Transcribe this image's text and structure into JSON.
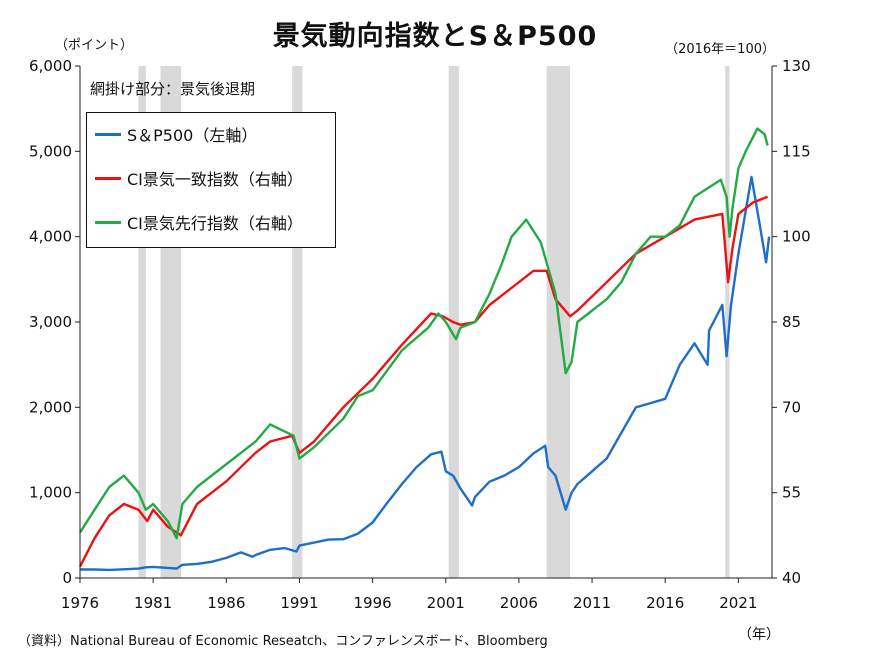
{
  "title": "景気動向指数とS＆P500",
  "unit_left": "（ポイント）",
  "unit_right": "（2016年＝100）",
  "shade_note": "網掛け部分：景気後退期",
  "source": "（資料）National Bureau of Economic Reseatch、コンファレンスボード、Bloomberg",
  "x_unit": "（年）",
  "chart_data": {
    "type": "line",
    "title": "景気動向指数とS＆P500",
    "xlim": [
      1976,
      2023.3
    ],
    "x_ticks": [
      1976,
      1981,
      1986,
      1991,
      1996,
      2001,
      2006,
      2011,
      2016,
      2021
    ],
    "x_tick_labels": [
      "1976",
      "1981",
      "1986",
      "1991",
      "1996",
      "2001",
      "2006",
      "2011",
      "2016",
      "2021"
    ],
    "y_left": {
      "label": "（ポイント）",
      "lim": [
        0,
        6000
      ],
      "ticks": [
        0,
        1000,
        2000,
        3000,
        4000,
        5000,
        6000
      ],
      "tick_labels": [
        "0",
        "1,000",
        "2,000",
        "3,000",
        "4,000",
        "5,000",
        "6,000"
      ]
    },
    "y_right": {
      "label": "（2016年＝100）",
      "lim": [
        40,
        130
      ],
      "ticks": [
        40,
        55,
        70,
        85,
        100,
        115,
        130
      ],
      "tick_labels": [
        "40",
        "55",
        "70",
        "85",
        "100",
        "115",
        "130"
      ]
    },
    "recessions": [
      [
        1980.0,
        1980.5
      ],
      [
        1981.5,
        1982.9
      ],
      [
        1990.5,
        1991.2
      ],
      [
        2001.2,
        2001.9
      ],
      [
        2007.9,
        2009.5
      ],
      [
        2020.1,
        2020.4
      ]
    ],
    "grid": false,
    "legend_position": "top-left",
    "series": [
      {
        "name": "S＆P500（左軸）",
        "axis": "left",
        "color": "#1f6fc8",
        "x": [
          1976,
          1977,
          1978,
          1979,
          1980,
          1980.5,
          1981,
          1982,
          1982.6,
          1983,
          1984,
          1985,
          1986,
          1987,
          1987.8,
          1988,
          1989,
          1990,
          1990.8,
          1991,
          1992,
          1993,
          1994,
          1995,
          1996,
          1997,
          1998,
          1999,
          2000,
          2000.7,
          2001,
          2001.5,
          2002,
          2002.8,
          2003,
          2004,
          2005,
          2006,
          2007,
          2007.8,
          2008,
          2008.5,
          2009.2,
          2009.6,
          2010,
          2011,
          2012,
          2013,
          2014,
          2015,
          2016,
          2017,
          2018,
          2018.9,
          2019,
          2019.9,
          2020.2,
          2020.5,
          2021,
          2021.9,
          2022.3,
          2022.7,
          2022.9,
          2023.1
        ],
        "y": [
          100,
          100,
          95,
          102,
          110,
          125,
          130,
          118,
          110,
          155,
          165,
          190,
          235,
          300,
          250,
          270,
          330,
          350,
          310,
          380,
          415,
          450,
          455,
          520,
          650,
          880,
          1100,
          1300,
          1450,
          1480,
          1250,
          1200,
          1050,
          850,
          950,
          1130,
          1200,
          1300,
          1460,
          1550,
          1300,
          1200,
          800,
          1000,
          1100,
          1250,
          1400,
          1700,
          2000,
          2050,
          2100,
          2500,
          2750,
          2500,
          2900,
          3200,
          2600,
          3200,
          3800,
          4700,
          4300,
          3900,
          3700,
          4000
        ]
      },
      {
        "name": "CI景気一致指数（右軸）",
        "axis": "right",
        "color": "#ee1111",
        "x": [
          1976,
          1977,
          1978,
          1979,
          1980,
          1980.6,
          1981,
          1982,
          1982.9,
          1984,
          1986,
          1988,
          1989,
          1990.5,
          1991,
          1992,
          1994,
          1996,
          1998,
          2000,
          2000.8,
          2001.5,
          2002,
          2003,
          2004,
          2006,
          2007,
          2007.9,
          2008.5,
          2009.5,
          2010,
          2012,
          2014,
          2016,
          2018,
          2019.9,
          2020.3,
          2020.6,
          2021,
          2022,
          2023
        ],
        "y": [
          42,
          47,
          51,
          53,
          52,
          50,
          52,
          49,
          47.5,
          53,
          57,
          62,
          64,
          65,
          62,
          64,
          70,
          75,
          81,
          86.5,
          86,
          85,
          84.5,
          85,
          88,
          92,
          94,
          94,
          89,
          86,
          87,
          92,
          97,
          100,
          103,
          104,
          92,
          98,
          104,
          106,
          107
        ]
      },
      {
        "name": "CI景気先行指数（右軸）",
        "axis": "right",
        "color": "#22aa44",
        "x": [
          1976,
          1977,
          1978,
          1979,
          1980,
          1980.5,
          1981,
          1982,
          1982.6,
          1983,
          1984,
          1986,
          1988,
          1989,
          1990.6,
          1991,
          1992,
          1994,
          1995,
          1996,
          1998,
          1999.8,
          2000.5,
          2001,
          2001.7,
          2002,
          2003,
          2004,
          2004.8,
          2005.5,
          2006.5,
          2007.5,
          2008.5,
          2009.2,
          2009.6,
          2010,
          2011,
          2012,
          2013,
          2014,
          2015,
          2016,
          2017,
          2018,
          2019.8,
          2020.2,
          2020.4,
          2020.6,
          2021,
          2021.5,
          2022.3,
          2022.8,
          2023
        ],
        "y": [
          48,
          52,
          56,
          58,
          55,
          52,
          53,
          50,
          47,
          53,
          56,
          60,
          64,
          67,
          65,
          61,
          63,
          68,
          72,
          73,
          80,
          84,
          86.5,
          85,
          82,
          84,
          85,
          90,
          95,
          100,
          103,
          99,
          90,
          76,
          78,
          85,
          87,
          89,
          92,
          97,
          100,
          100,
          102,
          107,
          110,
          107,
          100,
          105,
          112,
          115,
          119,
          118,
          116
        ]
      }
    ]
  }
}
